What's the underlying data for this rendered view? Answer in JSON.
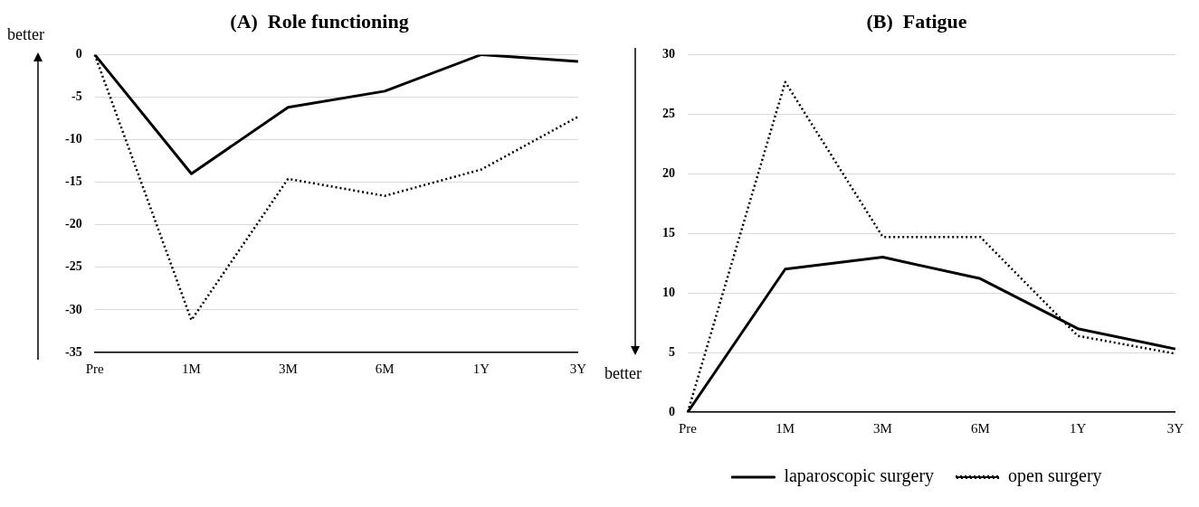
{
  "chart_data": [
    {
      "type": "line",
      "title": "(A)  Role functioning",
      "ylabel": "better",
      "categories": [
        "Pre",
        "1M",
        "3M",
        "6M",
        "1Y",
        "3Y"
      ],
      "series": [
        {
          "color": "#000000",
          "line_style": "solid",
          "values": [
            0,
            -14,
            -6.2,
            -4.3,
            0,
            -0.8
          ]
        },
        {
          "color": "#000000",
          "line_style": "dotted",
          "values": [
            0,
            -31.2,
            -14.6,
            -16.6,
            -13.5,
            -7.3
          ]
        }
      ],
      "ylim": [
        -35,
        0
      ],
      "yticks": [
        -35,
        -30,
        -25,
        -20,
        -15,
        -10,
        -5,
        0
      ],
      "grid": "y",
      "marker": "none",
      "legend": false
    },
    {
      "type": "line",
      "title": "(B)  Fatigue",
      "ylabel": "better",
      "categories": [
        "Pre",
        "1M",
        "3M",
        "6M",
        "1Y",
        "3Y"
      ],
      "series": [
        {
          "name": "laparoscopic surgery",
          "color": "#000000",
          "line_style": "solid",
          "values": [
            0,
            12,
            13,
            11.2,
            7,
            5.3
          ]
        },
        {
          "name": "open surgery",
          "color": "#000000",
          "line_style": "dotted",
          "values": [
            0,
            27.7,
            14.7,
            14.7,
            6.4,
            4.9
          ]
        }
      ],
      "ylim": [
        0,
        30
      ],
      "yticks": [
        0,
        5,
        10,
        15,
        20,
        25,
        30
      ],
      "grid": "y",
      "marker": "none",
      "legend": "bottom"
    }
  ]
}
